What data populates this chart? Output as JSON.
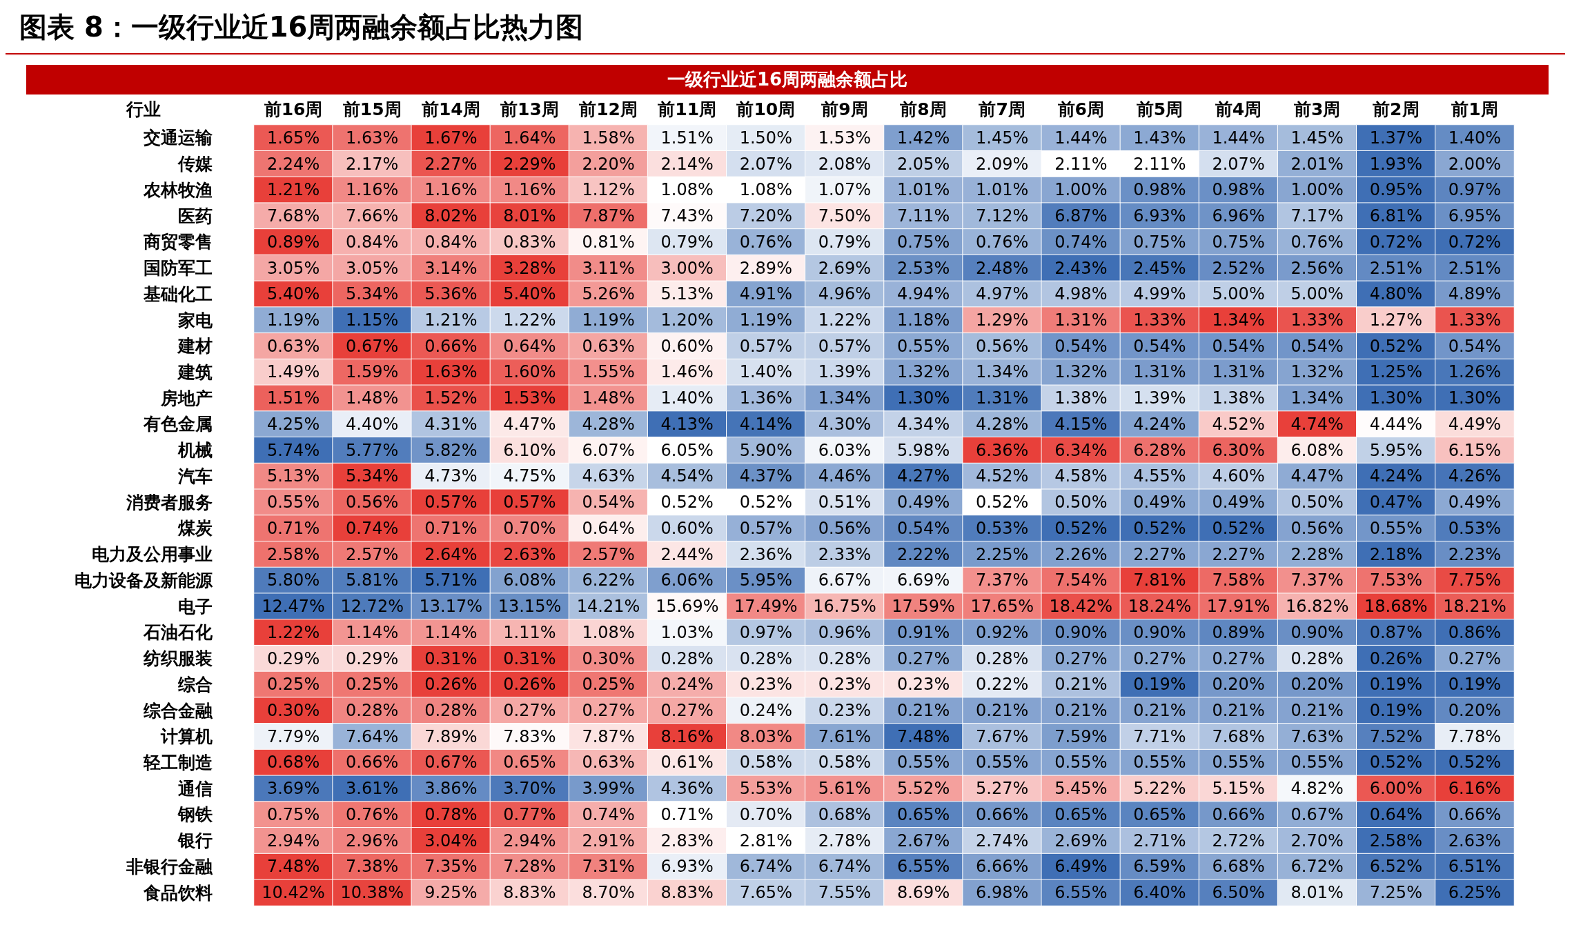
{
  "chart_data": {
    "type": "heatmap",
    "title": "图表 8：一级行业近16周两融余额占比热力图",
    "subtitle": "一级行业近16周两融余额占比",
    "ylabel": "行业",
    "colors": [
      "#3f6fb5",
      "#ffffff",
      "#e8403a"
    ],
    "categories": [
      "前16周",
      "前15周",
      "前14周",
      "前13周",
      "前12周",
      "前11周",
      "前10周",
      "前9周",
      "前8周",
      "前7周",
      "前6周",
      "前5周",
      "前4周",
      "前3周",
      "前2周",
      "前1周"
    ],
    "y_categories": [
      "交通运输",
      "传媒",
      "农林牧渔",
      "医药",
      "商贸零售",
      "国防军工",
      "基础化工",
      "家电",
      "建材",
      "建筑",
      "房地产",
      "有色金属",
      "机械",
      "汽车",
      "消费者服务",
      "煤炭",
      "电力及公用事业",
      "电力设备及新能源",
      "电子",
      "石油石化",
      "纺织服装",
      "综合",
      "综合金融",
      "计算机",
      "轻工制造",
      "通信",
      "钢铁",
      "银行",
      "非银行金融",
      "食品饮料"
    ],
    "cells": [
      [
        1.65,
        1.63,
        1.67,
        1.64,
        1.58,
        1.51,
        1.5,
        1.53,
        1.42,
        1.45,
        1.44,
        1.43,
        1.44,
        1.45,
        1.37,
        1.4
      ],
      [
        2.24,
        2.17,
        2.27,
        2.29,
        2.2,
        2.14,
        2.07,
        2.08,
        2.05,
        2.09,
        2.11,
        2.11,
        2.07,
        2.01,
        1.93,
        2.0
      ],
      [
        1.21,
        1.16,
        1.16,
        1.16,
        1.12,
        1.08,
        1.08,
        1.07,
        1.01,
        1.01,
        1.0,
        0.98,
        0.98,
        1.0,
        0.95,
        0.97
      ],
      [
        7.68,
        7.66,
        8.02,
        8.01,
        7.87,
        7.43,
        7.2,
        7.5,
        7.11,
        7.12,
        6.87,
        6.93,
        6.96,
        7.17,
        6.81,
        6.95
      ],
      [
        0.89,
        0.84,
        0.84,
        0.83,
        0.81,
        0.79,
        0.76,
        0.79,
        0.75,
        0.76,
        0.74,
        0.75,
        0.75,
        0.76,
        0.72,
        0.72
      ],
      [
        3.05,
        3.05,
        3.14,
        3.28,
        3.11,
        3.0,
        2.89,
        2.69,
        2.53,
        2.48,
        2.43,
        2.45,
        2.52,
        2.56,
        2.51,
        2.51
      ],
      [
        5.4,
        5.34,
        5.36,
        5.4,
        5.26,
        5.13,
        4.91,
        4.96,
        4.94,
        4.97,
        4.98,
        4.99,
        5.0,
        5.0,
        4.8,
        4.89
      ],
      [
        1.19,
        1.15,
        1.21,
        1.22,
        1.19,
        1.2,
        1.19,
        1.22,
        1.18,
        1.29,
        1.31,
        1.33,
        1.34,
        1.33,
        1.27,
        1.33
      ],
      [
        0.63,
        0.67,
        0.66,
        0.64,
        0.63,
        0.6,
        0.57,
        0.57,
        0.55,
        0.56,
        0.54,
        0.54,
        0.54,
        0.54,
        0.52,
        0.54
      ],
      [
        1.49,
        1.59,
        1.63,
        1.6,
        1.55,
        1.46,
        1.4,
        1.39,
        1.32,
        1.34,
        1.32,
        1.31,
        1.31,
        1.32,
        1.25,
        1.26
      ],
      [
        1.51,
        1.48,
        1.52,
        1.53,
        1.48,
        1.4,
        1.36,
        1.34,
        1.3,
        1.31,
        1.38,
        1.39,
        1.38,
        1.34,
        1.3,
        1.3
      ],
      [
        4.25,
        4.4,
        4.31,
        4.47,
        4.28,
        4.13,
        4.14,
        4.3,
        4.34,
        4.28,
        4.15,
        4.24,
        4.52,
        4.74,
        4.44,
        4.49
      ],
      [
        5.74,
        5.77,
        5.82,
        6.1,
        6.07,
        6.05,
        5.9,
        6.03,
        5.98,
        6.36,
        6.34,
        6.28,
        6.3,
        6.08,
        5.95,
        6.15
      ],
      [
        5.13,
        5.34,
        4.73,
        4.75,
        4.63,
        4.54,
        4.37,
        4.46,
        4.27,
        4.52,
        4.58,
        4.55,
        4.6,
        4.47,
        4.24,
        4.26
      ],
      [
        0.55,
        0.56,
        0.57,
        0.57,
        0.54,
        0.52,
        0.52,
        0.51,
        0.49,
        0.52,
        0.5,
        0.49,
        0.49,
        0.5,
        0.47,
        0.49
      ],
      [
        0.71,
        0.74,
        0.71,
        0.7,
        0.64,
        0.6,
        0.57,
        0.56,
        0.54,
        0.53,
        0.52,
        0.52,
        0.52,
        0.56,
        0.55,
        0.53
      ],
      [
        2.58,
        2.57,
        2.64,
        2.63,
        2.57,
        2.44,
        2.36,
        2.33,
        2.22,
        2.25,
        2.26,
        2.27,
        2.27,
        2.28,
        2.18,
        2.23
      ],
      [
        5.8,
        5.81,
        5.71,
        6.08,
        6.22,
        6.06,
        5.95,
        6.67,
        6.69,
        7.37,
        7.54,
        7.81,
        7.58,
        7.37,
        7.53,
        7.75
      ],
      [
        12.47,
        12.72,
        13.17,
        13.15,
        14.21,
        15.69,
        17.49,
        16.75,
        17.59,
        17.65,
        18.42,
        18.24,
        17.91,
        16.82,
        18.68,
        18.21
      ],
      [
        1.22,
        1.14,
        1.14,
        1.11,
        1.08,
        1.03,
        0.97,
        0.96,
        0.91,
        0.92,
        0.9,
        0.9,
        0.89,
        0.9,
        0.87,
        0.86
      ],
      [
        0.29,
        0.29,
        0.31,
        0.31,
        0.3,
        0.28,
        0.28,
        0.28,
        0.27,
        0.28,
        0.27,
        0.27,
        0.27,
        0.28,
        0.26,
        0.27
      ],
      [
        0.25,
        0.25,
        0.26,
        0.26,
        0.25,
        0.24,
        0.23,
        0.23,
        0.23,
        0.22,
        0.21,
        0.19,
        0.2,
        0.2,
        0.19,
        0.19
      ],
      [
        0.3,
        0.28,
        0.28,
        0.27,
        0.27,
        0.27,
        0.24,
        0.23,
        0.21,
        0.21,
        0.21,
        0.21,
        0.21,
        0.21,
        0.19,
        0.2
      ],
      [
        7.79,
        7.64,
        7.89,
        7.83,
        7.87,
        8.16,
        8.03,
        7.61,
        7.48,
        7.67,
        7.59,
        7.71,
        7.68,
        7.63,
        7.52,
        7.78
      ],
      [
        0.68,
        0.66,
        0.67,
        0.65,
        0.63,
        0.61,
        0.58,
        0.58,
        0.55,
        0.55,
        0.55,
        0.55,
        0.55,
        0.55,
        0.52,
        0.52
      ],
      [
        3.69,
        3.61,
        3.86,
        3.7,
        3.99,
        4.36,
        5.53,
        5.61,
        5.52,
        5.27,
        5.45,
        5.22,
        5.15,
        4.82,
        6.0,
        6.16
      ],
      [
        0.75,
        0.76,
        0.78,
        0.77,
        0.74,
        0.71,
        0.7,
        0.68,
        0.65,
        0.66,
        0.65,
        0.65,
        0.66,
        0.67,
        0.64,
        0.66
      ],
      [
        2.94,
        2.96,
        3.04,
        2.94,
        2.91,
        2.83,
        2.81,
        2.78,
        2.67,
        2.74,
        2.69,
        2.71,
        2.72,
        2.7,
        2.58,
        2.63
      ],
      [
        7.48,
        7.38,
        7.35,
        7.28,
        7.31,
        6.93,
        6.74,
        6.74,
        6.55,
        6.66,
        6.49,
        6.59,
        6.68,
        6.72,
        6.52,
        6.51
      ],
      [
        10.42,
        10.38,
        9.25,
        8.83,
        8.7,
        8.83,
        7.65,
        7.55,
        8.69,
        6.98,
        6.55,
        6.4,
        6.5,
        8.01,
        7.25,
        6.25
      ]
    ],
    "cell_labels": [
      [
        "1.65%",
        "1.63%",
        "1.67%",
        "1.64%",
        "1.58%",
        "1.51%",
        "1.50%",
        "1.53%",
        "1.42%",
        "1.45%",
        "1.44%",
        "1.43%",
        "1.44%",
        "1.45%",
        "1.37%",
        "1.40%"
      ],
      [
        "2.24%",
        "2.17%",
        "2.27%",
        "2.29%",
        "2.20%",
        "2.14%",
        "2.07%",
        "2.08%",
        "2.05%",
        "2.09%",
        "2.11%",
        "2.11%",
        "2.07%",
        "2.01%",
        "1.93%",
        "2.00%"
      ],
      [
        "1.21%",
        "1.16%",
        "1.16%",
        "1.16%",
        "1.12%",
        "1.08%",
        "1.08%",
        "1.07%",
        "1.01%",
        "1.01%",
        "1.00%",
        "0.98%",
        "0.98%",
        "1.00%",
        "0.95%",
        "0.97%"
      ],
      [
        "7.68%",
        "7.66%",
        "8.02%",
        "8.01%",
        "7.87%",
        "7.43%",
        "7.20%",
        "7.50%",
        "7.11%",
        "7.12%",
        "6.87%",
        "6.93%",
        "6.96%",
        "7.17%",
        "6.81%",
        "6.95%"
      ],
      [
        "0.89%",
        "0.84%",
        "0.84%",
        "0.83%",
        "0.81%",
        "0.79%",
        "0.76%",
        "0.79%",
        "0.75%",
        "0.76%",
        "0.74%",
        "0.75%",
        "0.75%",
        "0.76%",
        "0.72%",
        "0.72%"
      ],
      [
        "3.05%",
        "3.05%",
        "3.14%",
        "3.28%",
        "3.11%",
        "3.00%",
        "2.89%",
        "2.69%",
        "2.53%",
        "2.48%",
        "2.43%",
        "2.45%",
        "2.52%",
        "2.56%",
        "2.51%",
        "2.51%"
      ],
      [
        "5.40%",
        "5.34%",
        "5.36%",
        "5.40%",
        "5.26%",
        "5.13%",
        "4.91%",
        "4.96%",
        "4.94%",
        "4.97%",
        "4.98%",
        "4.99%",
        "5.00%",
        "5.00%",
        "4.80%",
        "4.89%"
      ],
      [
        "1.19%",
        "1.15%",
        "1.21%",
        "1.22%",
        "1.19%",
        "1.20%",
        "1.19%",
        "1.22%",
        "1.18%",
        "1.29%",
        "1.31%",
        "1.33%",
        "1.34%",
        "1.33%",
        "1.27%",
        "1.33%"
      ],
      [
        "0.63%",
        "0.67%",
        "0.66%",
        "0.64%",
        "0.63%",
        "0.60%",
        "0.57%",
        "0.57%",
        "0.55%",
        "0.56%",
        "0.54%",
        "0.54%",
        "0.54%",
        "0.54%",
        "0.52%",
        "0.54%"
      ],
      [
        "1.49%",
        "1.59%",
        "1.63%",
        "1.60%",
        "1.55%",
        "1.46%",
        "1.40%",
        "1.39%",
        "1.32%",
        "1.34%",
        "1.32%",
        "1.31%",
        "1.31%",
        "1.32%",
        "1.25%",
        "1.26%"
      ],
      [
        "1.51%",
        "1.48%",
        "1.52%",
        "1.53%",
        "1.48%",
        "1.40%",
        "1.36%",
        "1.34%",
        "1.30%",
        "1.31%",
        "1.38%",
        "1.39%",
        "1.38%",
        "1.34%",
        "1.30%",
        "1.30%"
      ],
      [
        "4.25%",
        "4.40%",
        "4.31%",
        "4.47%",
        "4.28%",
        "4.13%",
        "4.14%",
        "4.30%",
        "4.34%",
        "4.28%",
        "4.15%",
        "4.24%",
        "4.52%",
        "4.74%",
        "4.44%",
        "4.49%"
      ],
      [
        "5.74%",
        "5.77%",
        "5.82%",
        "6.10%",
        "6.07%",
        "6.05%",
        "5.90%",
        "6.03%",
        "5.98%",
        "6.36%",
        "6.34%",
        "6.28%",
        "6.30%",
        "6.08%",
        "5.95%",
        "6.15%"
      ],
      [
        "5.13%",
        "5.34%",
        "4.73%",
        "4.75%",
        "4.63%",
        "4.54%",
        "4.37%",
        "4.46%",
        "4.27%",
        "4.52%",
        "4.58%",
        "4.55%",
        "4.60%",
        "4.47%",
        "4.24%",
        "4.26%"
      ],
      [
        "0.55%",
        "0.56%",
        "0.57%",
        "0.57%",
        "0.54%",
        "0.52%",
        "0.52%",
        "0.51%",
        "0.49%",
        "0.52%",
        "0.50%",
        "0.49%",
        "0.49%",
        "0.50%",
        "0.47%",
        "0.49%"
      ],
      [
        "0.71%",
        "0.74%",
        "0.71%",
        "0.70%",
        "0.64%",
        "0.60%",
        "0.57%",
        "0.56%",
        "0.54%",
        "0.53%",
        "0.52%",
        "0.52%",
        "0.52%",
        "0.56%",
        "0.55%",
        "0.53%"
      ],
      [
        "2.58%",
        "2.57%",
        "2.64%",
        "2.63%",
        "2.57%",
        "2.44%",
        "2.36%",
        "2.33%",
        "2.22%",
        "2.25%",
        "2.26%",
        "2.27%",
        "2.27%",
        "2.28%",
        "2.18%",
        "2.23%"
      ],
      [
        "5.80%",
        "5.81%",
        "5.71%",
        "6.08%",
        "6.22%",
        "6.06%",
        "5.95%",
        "6.67%",
        "6.69%",
        "7.37%",
        "7.54%",
        "7.81%",
        "7.58%",
        "7.37%",
        "7.53%",
        "7.75%"
      ],
      [
        "12.47%",
        "12.72%",
        "13.17%",
        "13.15%",
        "14.21%",
        "15.69%",
        "17.49%",
        "16.75%",
        "17.59%",
        "17.65%",
        "18.42%",
        "18.24%",
        "17.91%",
        "16.82%",
        "18.68%",
        "18.21%"
      ],
      [
        "1.22%",
        "1.14%",
        "1.14%",
        "1.11%",
        "1.08%",
        "1.03%",
        "0.97%",
        "0.96%",
        "0.91%",
        "0.92%",
        "0.90%",
        "0.90%",
        "0.89%",
        "0.90%",
        "0.87%",
        "0.86%"
      ],
      [
        "0.29%",
        "0.29%",
        "0.31%",
        "0.31%",
        "0.30%",
        "0.28%",
        "0.28%",
        "0.28%",
        "0.27%",
        "0.28%",
        "0.27%",
        "0.27%",
        "0.27%",
        "0.28%",
        "0.26%",
        "0.27%"
      ],
      [
        "0.25%",
        "0.25%",
        "0.26%",
        "0.26%",
        "0.25%",
        "0.24%",
        "0.23%",
        "0.23%",
        "0.23%",
        "0.22%",
        "0.21%",
        "0.19%",
        "0.20%",
        "0.20%",
        "0.19%",
        "0.19%"
      ],
      [
        "0.30%",
        "0.28%",
        "0.28%",
        "0.27%",
        "0.27%",
        "0.27%",
        "0.24%",
        "0.23%",
        "0.21%",
        "0.21%",
        "0.21%",
        "0.21%",
        "0.21%",
        "0.21%",
        "0.19%",
        "0.20%"
      ],
      [
        "7.79%",
        "7.64%",
        "7.89%",
        "7.83%",
        "7.87%",
        "8.16%",
        "8.03%",
        "7.61%",
        "7.48%",
        "7.67%",
        "7.59%",
        "7.71%",
        "7.68%",
        "7.63%",
        "7.52%",
        "7.78%"
      ],
      [
        "0.68%",
        "0.66%",
        "0.67%",
        "0.65%",
        "0.63%",
        "0.61%",
        "0.58%",
        "0.58%",
        "0.55%",
        "0.55%",
        "0.55%",
        "0.55%",
        "0.55%",
        "0.55%",
        "0.52%",
        "0.52%"
      ],
      [
        "3.69%",
        "3.61%",
        "3.86%",
        "3.70%",
        "3.99%",
        "4.36%",
        "5.53%",
        "5.61%",
        "5.52%",
        "5.27%",
        "5.45%",
        "5.22%",
        "5.15%",
        "4.82%",
        "6.00%",
        "6.16%"
      ],
      [
        "0.75%",
        "0.76%",
        "0.78%",
        "0.77%",
        "0.74%",
        "0.71%",
        "0.70%",
        "0.68%",
        "0.65%",
        "0.66%",
        "0.65%",
        "0.65%",
        "0.66%",
        "0.67%",
        "0.64%",
        "0.66%"
      ],
      [
        "2.94%",
        "2.96%",
        "3.04%",
        "2.94%",
        "2.91%",
        "2.83%",
        "2.81%",
        "2.78%",
        "2.67%",
        "2.74%",
        "2.69%",
        "2.71%",
        "2.72%",
        "2.70%",
        "2.58%",
        "2.63%"
      ],
      [
        "7.48%",
        "7.38%",
        "7.35%",
        "7.28%",
        "7.31%",
        "6.93%",
        "6.74%",
        "6.74%",
        "6.55%",
        "6.66%",
        "6.49%",
        "6.59%",
        "6.68%",
        "6.72%",
        "6.52%",
        "6.51%"
      ],
      [
        "10.42%",
        "10.38%",
        "9.25%",
        "8.83%",
        "8.70%",
        "8.83%",
        "7.65%",
        "7.55%",
        "8.69%",
        "6.98%",
        "6.55%",
        "6.40%",
        "6.50%",
        "8.01%",
        "7.25%",
        "6.25%"
      ]
    ]
  }
}
